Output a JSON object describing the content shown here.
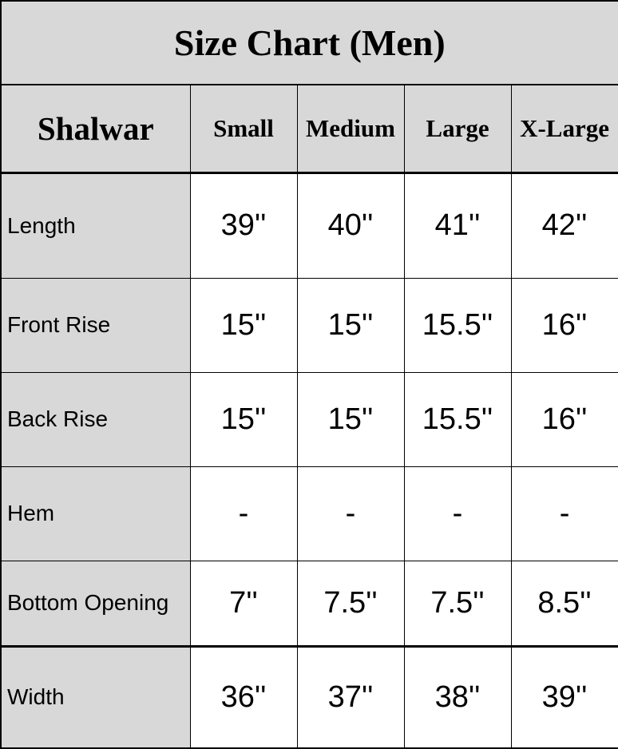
{
  "title": "Size Chart (Men)",
  "table": {
    "corner_label": "Shalwar",
    "columns": [
      "Small",
      "Medium",
      "Large",
      "X-Large"
    ],
    "rows": [
      {
        "label": "Length",
        "values": [
          "39''",
          "40''",
          "41''",
          "42''"
        ]
      },
      {
        "label": "Front Rise",
        "values": [
          "15''",
          "15''",
          "15.5''",
          "16''"
        ]
      },
      {
        "label": "Back Rise",
        "values": [
          "15''",
          "15''",
          "15.5''",
          "16''"
        ]
      },
      {
        "label": "Hem",
        "values": [
          "-",
          "-",
          "-",
          "-"
        ]
      },
      {
        "label": "Bottom Opening",
        "values": [
          "7''",
          "7.5''",
          "7.5''",
          "8.5''"
        ]
      },
      {
        "label": "Width",
        "values": [
          "36''",
          "37''",
          "38''",
          "39''"
        ]
      }
    ]
  },
  "colors": {
    "header_bg": "#d8d8d8",
    "cell_bg": "#ffffff",
    "border": "#000000",
    "text": "#000000"
  }
}
